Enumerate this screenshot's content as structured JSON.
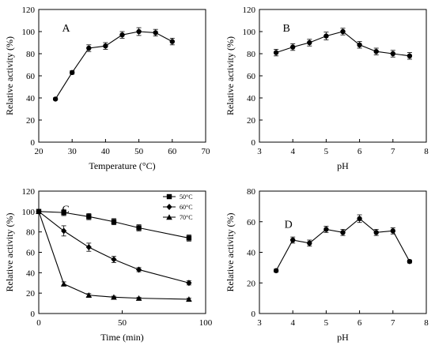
{
  "chart_data": [
    {
      "type": "line",
      "panel_label": "A",
      "xlabel": "Temperature (°C)",
      "ylabel": "Relative activity (%)",
      "xlim": [
        20,
        70
      ],
      "ylim": [
        0,
        120
      ],
      "xticks": [
        20,
        30,
        40,
        50,
        60,
        70
      ],
      "yticks": [
        0,
        20,
        40,
        60,
        80,
        100,
        120
      ],
      "grid": false,
      "series": [
        {
          "marker": "circle",
          "x": [
            25,
            30,
            35,
            40,
            45,
            50,
            55,
            60
          ],
          "y": [
            39,
            63,
            85,
            87,
            97,
            100,
            99,
            91
          ],
          "err": [
            1,
            1.5,
            3,
            3,
            3,
            3.5,
            3,
            3
          ]
        }
      ]
    },
    {
      "type": "line",
      "panel_label": "B",
      "xlabel": "pH",
      "ylabel": "Relative activity (%)",
      "xlim": [
        3,
        8
      ],
      "ylim": [
        0,
        120
      ],
      "xticks": [
        3,
        4,
        5,
        6,
        7,
        8
      ],
      "yticks": [
        0,
        20,
        40,
        60,
        80,
        100,
        120
      ],
      "grid": false,
      "series": [
        {
          "marker": "circle",
          "x": [
            3.5,
            4,
            4.5,
            5,
            5.5,
            6,
            6.5,
            7,
            7.5
          ],
          "y": [
            81,
            86,
            90,
            96,
            100,
            88,
            82,
            80,
            78
          ],
          "err": [
            3,
            3,
            3,
            3.5,
            3,
            3,
            3,
            3,
            3
          ]
        }
      ]
    },
    {
      "type": "line",
      "panel_label": "C",
      "xlabel": "Time (min)",
      "ylabel": "Relative activity (%)",
      "xlim": [
        0,
        100
      ],
      "ylim": [
        0,
        120
      ],
      "xticks": [
        0,
        50,
        100
      ],
      "yticks": [
        0,
        20,
        40,
        60,
        80,
        100,
        120
      ],
      "grid": false,
      "legend_position": "top-right",
      "series": [
        {
          "name": "50°C",
          "marker": "square",
          "x": [
            0,
            15,
            30,
            45,
            60,
            90
          ],
          "y": [
            100,
            99,
            95,
            90,
            84,
            74
          ],
          "err": [
            2,
            3,
            3,
            3,
            3,
            3
          ]
        },
        {
          "name": "60°C",
          "marker": "diamond",
          "x": [
            0,
            15,
            30,
            45,
            60,
            90
          ],
          "y": [
            100,
            81,
            65,
            53,
            43,
            30
          ],
          "err": [
            2,
            5,
            4,
            3,
            2,
            2
          ]
        },
        {
          "name": "70°C",
          "marker": "triangle",
          "x": [
            0,
            15,
            30,
            45,
            60,
            90
          ],
          "y": [
            100,
            29,
            18,
            16,
            15,
            14
          ],
          "err": [
            2,
            2,
            1.5,
            1,
            1,
            1
          ]
        }
      ]
    },
    {
      "type": "line",
      "panel_label": "D",
      "xlabel": "pH",
      "ylabel": "Relative activity (%)",
      "xlim": [
        3,
        8
      ],
      "ylim": [
        0,
        80
      ],
      "xticks": [
        3,
        4,
        5,
        6,
        7,
        8
      ],
      "yticks": [
        0,
        20,
        40,
        60,
        80
      ],
      "grid": false,
      "series": [
        {
          "marker": "circle",
          "x": [
            3.5,
            4,
            4.5,
            5,
            5.5,
            6,
            6.5,
            7,
            7.5
          ],
          "y": [
            28,
            48,
            46,
            55,
            53,
            62,
            53,
            54,
            34
          ],
          "err": [
            1,
            2,
            2,
            2,
            2,
            2.5,
            2,
            2,
            1
          ]
        }
      ]
    }
  ]
}
